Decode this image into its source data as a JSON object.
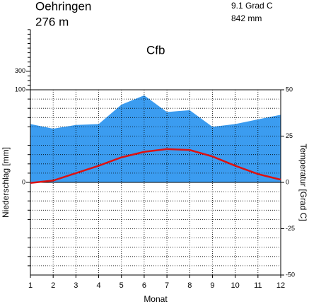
{
  "chart_data": {
    "type": "climate",
    "title": "Oehringen",
    "subtitle": "276 m",
    "annotations": [
      "9.1 Grad C",
      "842 mm"
    ],
    "climate_class": "Cfb",
    "xlabel": "Monat",
    "ylabel": "Niederschlag [mm]",
    "y2label": "Temperatur [Grad C]",
    "x": [
      1,
      2,
      3,
      4,
      5,
      6,
      7,
      8,
      9,
      10,
      11,
      12
    ],
    "xlim": [
      1,
      12
    ],
    "xticks": [
      1,
      2,
      3,
      4,
      5,
      6,
      7,
      8,
      9,
      10,
      11,
      12
    ],
    "ylim": [
      -100,
      750
    ],
    "yticks": [
      0,
      100,
      300
    ],
    "yminor": [
      150,
      200,
      250,
      350,
      400,
      450,
      500,
      550,
      600,
      650,
      700,
      750
    ],
    "y2lim": [
      -50,
      50
    ],
    "y2ticks": [
      -50,
      -25,
      0,
      25,
      50
    ],
    "y2minor": [
      -45,
      -40,
      -35,
      -30,
      -20,
      -15,
      -10,
      -5,
      5,
      10,
      15,
      20,
      30,
      35,
      40,
      45
    ],
    "grid": true,
    "series": [
      {
        "name": "Niederschlag",
        "color": "#3b9cf0",
        "values": [
          63,
          58,
          62,
          63,
          84,
          94,
          76,
          78,
          60,
          63,
          68,
          73
        ]
      },
      {
        "name": "Temperatur",
        "color": "#dd1111",
        "axis": "y2",
        "values": [
          -0.3,
          1,
          5,
          9,
          13.5,
          16.5,
          18,
          17.5,
          14,
          9,
          4.5,
          1.5
        ]
      }
    ]
  }
}
